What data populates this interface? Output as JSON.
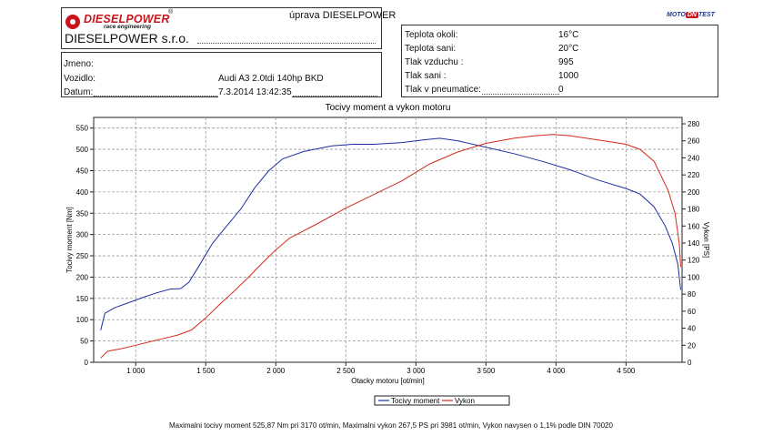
{
  "header": {
    "logo_name": "DIESELPOWER",
    "logo_tagline": "race engineering",
    "registered_mark": "®",
    "company": "DIESELPOWER s.r.o.",
    "uprava": "úprava DIESELPOWER",
    "dyno_brand_left": "MOTO",
    "dyno_brand_mid": "DN",
    "dyno_brand_right": "TEST"
  },
  "vehicle": {
    "jmeno_label": "Jmeno:",
    "jmeno_value": "",
    "vozidlo_label": "Vozidlo:",
    "vozidlo_value": "Audi A3 2.0tdi 140hp BKD",
    "datum_label": "Datum:",
    "datum_value": "7.3.2014 13:42:35"
  },
  "conditions": [
    {
      "label": "Teplota okoli:",
      "value": "16°C"
    },
    {
      "label": "Teplota sani:",
      "value": "20°C"
    },
    {
      "label": "Tlak vzduchu :",
      "value": "995"
    },
    {
      "label": "Tlak sani :",
      "value": "1000"
    },
    {
      "label": "Tlak v pneumatice:",
      "value": "0"
    }
  ],
  "footer_note": "Maximalni tocivy moment 525,87 Nm pri 3170 ot/min,  Maximalni vykon 267,5 PS pri 3981 ot/min,  Vykon navysen o 1,1% podle DIN 70020",
  "colors": {
    "torque": "#1c2fa0",
    "power": "#d42a1a",
    "grid": "#9a9a9a"
  },
  "chart_data": {
    "type": "line",
    "title": "Tocivy moment a vykon motoru",
    "xlabel": "Otacky motoru [ot/min]",
    "ylabel_left": "Tocivy moment [Nm]",
    "ylabel_right": "Vykon [PS]",
    "xlim": [
      700,
      4900
    ],
    "ylim_left": [
      0,
      575
    ],
    "ylim_right": [
      0,
      287.5
    ],
    "x_ticks": [
      1000,
      1500,
      2000,
      2500,
      3000,
      3500,
      4000,
      4500
    ],
    "x_tick_labels": [
      "1 000",
      "1 500",
      "2 000",
      "2 500",
      "3 000",
      "3 500",
      "4 000",
      "4 500"
    ],
    "y_left_ticks": [
      0,
      50,
      100,
      150,
      200,
      250,
      300,
      350,
      400,
      450,
      500,
      550
    ],
    "y_right_ticks": [
      0,
      20,
      40,
      60,
      80,
      100,
      120,
      140,
      160,
      180,
      200,
      220,
      240,
      260,
      280
    ],
    "grid": true,
    "legend_position": "bottom-center",
    "series": [
      {
        "name": "Tocivy moment",
        "axis": "left",
        "x": [
          750,
          780,
          850,
          950,
          1050,
          1150,
          1250,
          1320,
          1380,
          1450,
          1550,
          1650,
          1750,
          1850,
          1950,
          2050,
          2200,
          2400,
          2550,
          2700,
          2900,
          3050,
          3170,
          3300,
          3500,
          3700,
          3900,
          4100,
          4300,
          4500,
          4600,
          4700,
          4780,
          4830,
          4870,
          4890
        ],
        "values": [
          75,
          115,
          128,
          140,
          152,
          163,
          172,
          173,
          188,
          225,
          280,
          320,
          360,
          410,
          450,
          478,
          495,
          508,
          512,
          512,
          516,
          522,
          526,
          520,
          505,
          490,
          472,
          452,
          428,
          408,
          395,
          365,
          320,
          280,
          230,
          170
        ]
      },
      {
        "name": "Vykon",
        "axis": "right",
        "x": [
          750,
          800,
          900,
          1000,
          1100,
          1200,
          1300,
          1400,
          1500,
          1600,
          1700,
          1800,
          1900,
          2000,
          2100,
          2300,
          2500,
          2700,
          2900,
          3100,
          3300,
          3500,
          3700,
          3850,
          3981,
          4100,
          4300,
          4500,
          4600,
          4700,
          4800,
          4850,
          4880,
          4890
        ],
        "values": [
          5,
          13,
          16,
          20,
          24,
          28,
          32,
          38,
          52,
          68,
          83,
          99,
          116,
          132,
          146,
          163,
          181,
          197,
          213,
          233,
          247,
          257,
          263,
          266,
          267.5,
          266,
          261,
          256,
          250,
          236,
          202,
          175,
          140,
          112
        ]
      }
    ]
  }
}
